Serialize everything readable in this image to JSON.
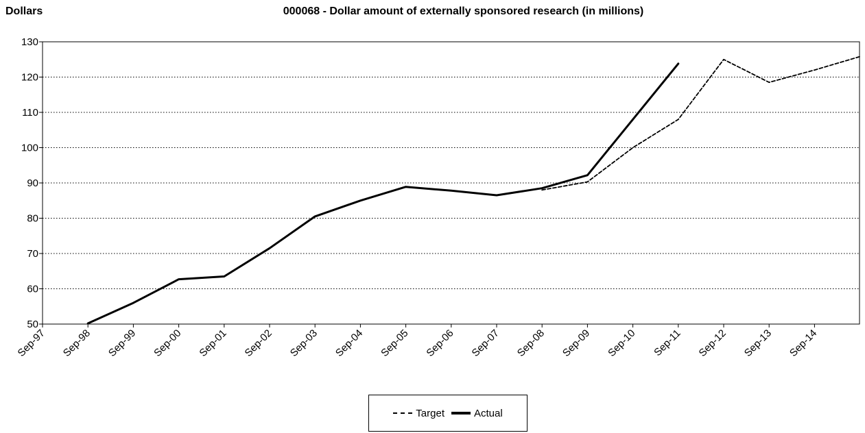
{
  "chart_data": {
    "type": "line",
    "title": "000068 - Dollar amount of externally sponsored research (in millions)",
    "ylabel": "Dollars",
    "xlabel": "",
    "ylim": [
      50,
      130
    ],
    "yticks": [
      50,
      60,
      70,
      80,
      90,
      100,
      110,
      120,
      130
    ],
    "categories": [
      "Sep-97",
      "Sep-98",
      "Sep-99",
      "Sep-00",
      "Sep-01",
      "Sep-02",
      "Sep-03",
      "Sep-04",
      "Sep-05",
      "Sep-06",
      "Sep-07",
      "Sep-08",
      "Sep-09",
      "Sep-10",
      "Sep-11",
      "Sep-12",
      "Sep-13",
      "Sep-14"
    ],
    "grid": "horizontal-dotted",
    "legend": "bottom-center",
    "series": [
      {
        "name": "Target",
        "style": "dashed",
        "points": [
          {
            "x": "Sep-08",
            "y": 88
          },
          {
            "x": "Sep-09",
            "y": 90.3
          },
          {
            "x": "Sep-10",
            "y": 100
          },
          {
            "x": "Sep-11",
            "y": 108
          },
          {
            "x": "Sep-12",
            "y": 125
          },
          {
            "x": "Sep-13",
            "y": 118.5
          },
          {
            "x": "Sep-14",
            "y": 122
          },
          {
            "x": "Sep-15",
            "y": 125.8
          }
        ]
      },
      {
        "name": "Actual",
        "style": "solid",
        "points": [
          {
            "x": "Sep-98",
            "y": 50.2
          },
          {
            "x": "Sep-99",
            "y": 56
          },
          {
            "x": "Sep-00",
            "y": 62.7
          },
          {
            "x": "Sep-01",
            "y": 63.5
          },
          {
            "x": "Sep-02",
            "y": 71.5
          },
          {
            "x": "Sep-03",
            "y": 80.5
          },
          {
            "x": "Sep-04",
            "y": 85
          },
          {
            "x": "Sep-05",
            "y": 88.9
          },
          {
            "x": "Sep-06",
            "y": 87.8
          },
          {
            "x": "Sep-07",
            "y": 86.5
          },
          {
            "x": "Sep-08",
            "y": 88.5
          },
          {
            "x": "Sep-09",
            "y": 92.2
          },
          {
            "x": "Sep-10",
            "y": 108
          },
          {
            "x": "Sep-11",
            "y": 123.8
          }
        ]
      }
    ]
  }
}
